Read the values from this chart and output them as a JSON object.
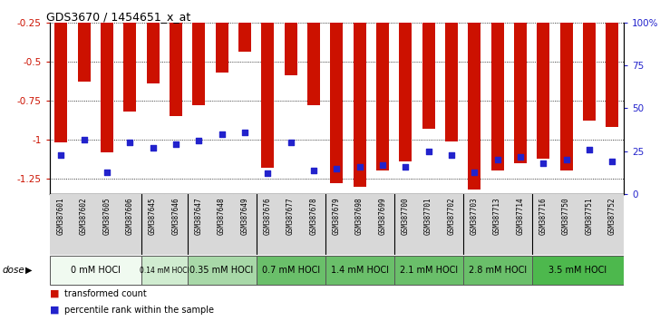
{
  "title": "GDS3670 / 1454651_x_at",
  "samples": [
    "GSM387601",
    "GSM387602",
    "GSM387605",
    "GSM387606",
    "GSM387645",
    "GSM387646",
    "GSM387647",
    "GSM387648",
    "GSM387649",
    "GSM387676",
    "GSM387677",
    "GSM387678",
    "GSM387679",
    "GSM387698",
    "GSM387699",
    "GSM387700",
    "GSM387701",
    "GSM387702",
    "GSM387703",
    "GSM387713",
    "GSM387714",
    "GSM387716",
    "GSM387750",
    "GSM387751",
    "GSM387752"
  ],
  "bar_values": [
    -1.02,
    -0.63,
    -1.08,
    -0.82,
    -0.64,
    -0.85,
    -0.78,
    -0.57,
    -0.44,
    -1.18,
    -0.59,
    -0.78,
    -1.28,
    -1.3,
    -1.2,
    -1.14,
    -0.93,
    -1.01,
    -1.32,
    -1.2,
    -1.15,
    -1.12,
    -1.2,
    -0.88,
    -0.92
  ],
  "dot_values": [
    23,
    32,
    13,
    30,
    27,
    29,
    31,
    35,
    36,
    12,
    30,
    14,
    15,
    16,
    17,
    16,
    25,
    23,
    13,
    20,
    22,
    18,
    20,
    26,
    19
  ],
  "groups": [
    {
      "label": "0 mM HOCl",
      "start": 0,
      "end": 4,
      "color": "#f0faf0"
    },
    {
      "label": "0.14 mM HOCl",
      "start": 4,
      "end": 6,
      "color": "#d0ecd0"
    },
    {
      "label": "0.35 mM HOCl",
      "start": 6,
      "end": 9,
      "color": "#a8d8a8"
    },
    {
      "label": "0.7 mM HOCl",
      "start": 9,
      "end": 12,
      "color": "#6abf6a"
    },
    {
      "label": "1.4 mM HOCl",
      "start": 12,
      "end": 15,
      "color": "#6abf6a"
    },
    {
      "label": "2.1 mM HOCl",
      "start": 15,
      "end": 18,
      "color": "#6abf6a"
    },
    {
      "label": "2.8 mM HOCl",
      "start": 18,
      "end": 21,
      "color": "#6abf6a"
    },
    {
      "label": "3.5 mM HOCl",
      "start": 21,
      "end": 25,
      "color": "#4db84d"
    }
  ],
  "bar_color": "#cc1100",
  "dot_color": "#2222cc",
  "ylim_left": [
    -1.35,
    -0.25
  ],
  "yticks_left": [
    -1.25,
    -1.0,
    -0.75,
    -0.5,
    -0.25
  ],
  "ytick_labels_left": [
    "-1.25",
    "-1",
    "-0.75",
    "-0.5",
    "-0.25"
  ],
  "yticks_right_pct": [
    0,
    25,
    50,
    75,
    100
  ],
  "ytick_labels_right": [
    "0",
    "25",
    "50",
    "75",
    "100%"
  ],
  "background_color": "#ffffff",
  "plot_bg_color": "#ffffff",
  "xtick_bg": "#d8d8d8",
  "dose_label": "dose",
  "legend_tc": "transformed count",
  "legend_pr": "percentile rank within the sample",
  "bar_width": 0.55
}
